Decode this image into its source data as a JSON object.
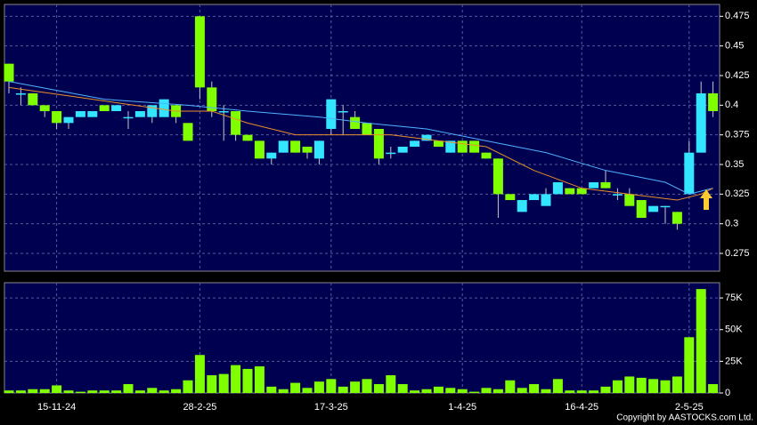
{
  "chart_data": [
    {
      "type": "candlestick",
      "categories": [
        null,
        null,
        null,
        null,
        "15-11-24",
        null,
        null,
        null,
        null,
        null,
        null,
        null,
        null,
        null,
        null,
        null,
        "28-2-25",
        null,
        null,
        null,
        null,
        null,
        null,
        null,
        null,
        null,
        null,
        "17-3-25",
        null,
        null,
        null,
        null,
        null,
        null,
        null,
        null,
        null,
        null,
        "1-4-25",
        null,
        null,
        null,
        null,
        null,
        null,
        null,
        null,
        null,
        "16-4-25",
        null,
        null,
        null,
        null,
        null,
        null,
        null,
        null,
        "2-5-25",
        null,
        null
      ],
      "open": [
        0.435,
        0.41,
        0.41,
        0.4,
        0.395,
        0.385,
        0.39,
        0.39,
        0.4,
        0.395,
        0.39,
        0.39,
        0.39,
        0.39,
        0.4,
        0.385,
        0.475,
        0.415,
        0.395,
        0.395,
        0.375,
        0.37,
        0.355,
        0.36,
        0.37,
        0.365,
        0.355,
        0.38,
        0.395,
        0.39,
        0.385,
        0.38,
        0.36,
        0.36,
        0.365,
        0.37,
        0.37,
        0.36,
        0.37,
        0.37,
        0.36,
        0.355,
        0.325,
        0.31,
        0.32,
        0.315,
        0.325,
        0.33,
        0.33,
        0.33,
        0.335,
        0.325,
        0.325,
        0.32,
        0.31,
        0.315,
        0.31,
        0.325,
        0.36,
        0.41
      ],
      "high": [
        0.435,
        0.415,
        0.41,
        0.4,
        0.395,
        0.39,
        0.395,
        0.395,
        0.4,
        0.4,
        0.395,
        0.395,
        0.4,
        0.405,
        0.4,
        0.385,
        0.475,
        0.42,
        0.4,
        0.395,
        0.375,
        0.37,
        0.36,
        0.37,
        0.37,
        0.365,
        0.37,
        0.405,
        0.4,
        0.395,
        0.385,
        0.38,
        0.365,
        0.365,
        0.37,
        0.375,
        0.37,
        0.37,
        0.37,
        0.37,
        0.36,
        0.355,
        0.325,
        0.32,
        0.325,
        0.33,
        0.335,
        0.33,
        0.33,
        0.335,
        0.345,
        0.33,
        0.33,
        0.32,
        0.315,
        0.315,
        0.31,
        0.37,
        0.42,
        0.42
      ],
      "low": [
        0.41,
        0.4,
        0.4,
        0.39,
        0.38,
        0.38,
        0.39,
        0.39,
        0.395,
        0.395,
        0.38,
        0.39,
        0.385,
        0.39,
        0.385,
        0.37,
        0.405,
        0.39,
        0.37,
        0.37,
        0.37,
        0.355,
        0.35,
        0.36,
        0.36,
        0.355,
        0.35,
        0.375,
        0.375,
        0.38,
        0.375,
        0.35,
        0.355,
        0.36,
        0.365,
        0.37,
        0.365,
        0.36,
        0.36,
        0.36,
        0.355,
        0.305,
        0.32,
        0.31,
        0.32,
        0.315,
        0.325,
        0.325,
        0.325,
        0.33,
        0.33,
        0.32,
        0.315,
        0.305,
        0.31,
        0.3,
        0.295,
        0.325,
        0.36,
        0.39
      ],
      "close": [
        0.42,
        0.41,
        0.4,
        0.395,
        0.385,
        0.39,
        0.395,
        0.395,
        0.395,
        0.4,
        0.39,
        0.395,
        0.4,
        0.405,
        0.39,
        0.37,
        0.415,
        0.395,
        0.395,
        0.375,
        0.37,
        0.355,
        0.36,
        0.37,
        0.36,
        0.36,
        0.37,
        0.405,
        0.395,
        0.38,
        0.375,
        0.355,
        0.36,
        0.365,
        0.37,
        0.375,
        0.365,
        0.37,
        0.36,
        0.36,
        0.355,
        0.325,
        0.32,
        0.32,
        0.325,
        0.325,
        0.335,
        0.325,
        0.325,
        0.335,
        0.33,
        0.325,
        0.315,
        0.305,
        0.315,
        0.315,
        0.3,
        0.36,
        0.41,
        0.395
      ],
      "up_color": "#33e5ff",
      "down_color": "#80ff00",
      "moving_averages": [
        {
          "color": "#4fb2ff",
          "x": [
            0,
            8,
            15,
            20,
            26,
            30,
            35,
            40,
            45,
            50,
            55,
            57,
            59
          ],
          "values": [
            0.42,
            0.405,
            0.4,
            0.395,
            0.39,
            0.385,
            0.38,
            0.37,
            0.36,
            0.345,
            0.335,
            0.325,
            0.33
          ]
        },
        {
          "color": "#e8902a",
          "x": [
            0,
            7,
            14,
            17,
            20,
            24,
            28,
            32,
            36,
            40,
            44,
            48,
            52,
            56,
            58,
            59
          ],
          "values": [
            0.415,
            0.405,
            0.395,
            0.395,
            0.385,
            0.375,
            0.375,
            0.375,
            0.37,
            0.365,
            0.345,
            0.33,
            0.325,
            0.32,
            0.325,
            0.33
          ]
        }
      ],
      "ylim": [
        0.26,
        0.485
      ],
      "yticks": [
        0.275,
        0.3,
        0.325,
        0.35,
        0.375,
        0.4,
        0.425,
        0.45,
        0.475
      ],
      "grid": true
    },
    {
      "type": "bar",
      "values": [
        2000,
        2000,
        3000,
        3000,
        6000,
        2000,
        1000,
        2000,
        2000,
        2000,
        7000,
        2000,
        4000,
        2000,
        3000,
        10000,
        30000,
        14000,
        15000,
        22000,
        19000,
        21000,
        5000,
        3000,
        8000,
        4000,
        9000,
        11000,
        5000,
        9000,
        11000,
        7000,
        14000,
        7000,
        2000,
        3000,
        5000,
        4000,
        3000,
        1000,
        4000,
        3000,
        10000,
        4000,
        7000,
        3000,
        11000,
        2000,
        2000,
        2000,
        5000,
        10000,
        13000,
        12000,
        11000,
        10000,
        13000,
        44000,
        82000,
        7000
      ],
      "color": "#80ff00",
      "ylim": [
        0,
        87000
      ],
      "yticks": [
        0,
        {
          "value": 25000,
          "label": "25K"
        },
        {
          "value": 50000,
          "label": "50K"
        },
        {
          "value": 75000,
          "label": "75K"
        }
      ],
      "grid": true
    }
  ],
  "footer": "Copyright by AASTOCKS.com Ltd."
}
